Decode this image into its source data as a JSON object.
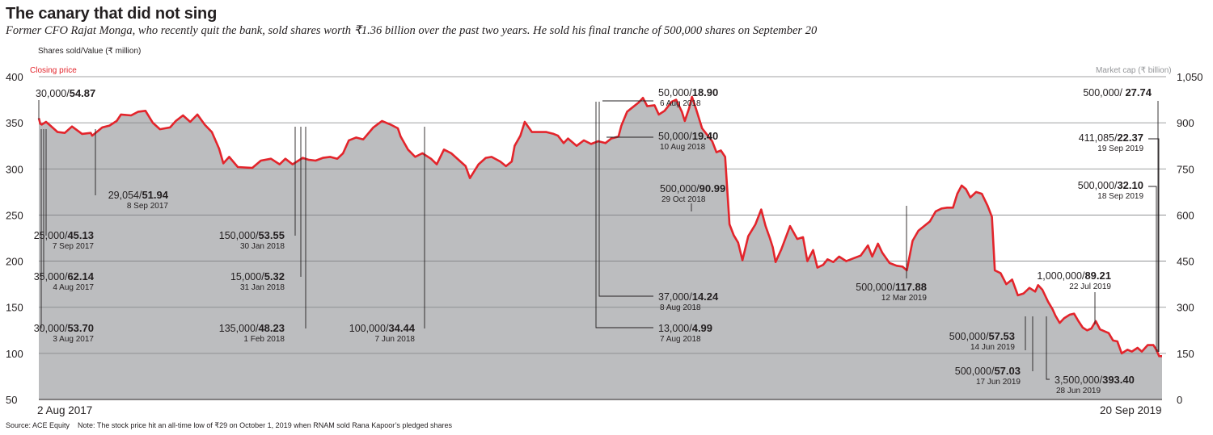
{
  "title": "The canary that did not sing",
  "subtitle": "Former CFO Rajat Monga, who recently quit the bank, sold shares worth ₹1.36 billion over the past two years. He sold his final tranche of 500,000 shares on September 20",
  "source": "Source: ACE Equity",
  "note": "Note: The stock price hit an all-time low of ₹29 on October 1, 2019 when RNAM sold Rana Kapoor’s pledged shares",
  "chart_data": {
    "type": "area",
    "left_axis_caption": "Shares sold/Value (₹ million)",
    "left_series_label": "Closing price",
    "right_axis_caption": "Market cap (₹ billion)",
    "x_start_label": "2 Aug 2017",
    "x_end_label": "20 Sep 2019",
    "y_left": {
      "range": [
        50,
        400
      ],
      "ticks": [
        "400",
        "350",
        "300",
        "250",
        "200",
        "150",
        "100",
        "50"
      ]
    },
    "y_right": {
      "range": [
        0,
        1050
      ],
      "ticks": [
        "1,050",
        "900",
        "750",
        "600",
        "450",
        "300",
        "150",
        "0"
      ]
    },
    "colors": {
      "price_line": "#e3242b",
      "market_cap_area": "#bcbdbf",
      "gridline": "#808285"
    },
    "series": [
      {
        "name": "Closing price",
        "axis": "left"
      },
      {
        "name": "Market cap",
        "axis": "right"
      }
    ],
    "closing_price": [
      [
        "2017-08-02",
        355
      ],
      [
        "2017-08-03",
        349
      ],
      [
        "2017-08-04",
        348
      ],
      [
        "2017-08-07",
        351
      ],
      [
        "2017-08-10",
        347
      ],
      [
        "2017-08-15",
        340
      ],
      [
        "2017-08-20",
        339
      ],
      [
        "2017-08-25",
        346
      ],
      [
        "2017-09-01",
        338
      ],
      [
        "2017-09-07",
        339
      ],
      [
        "2017-09-08",
        336
      ],
      [
        "2017-09-15",
        345
      ],
      [
        "2017-09-20",
        347
      ],
      [
        "2017-09-25",
        352
      ],
      [
        "2017-09-28",
        359
      ],
      [
        "2017-10-05",
        358
      ],
      [
        "2017-10-10",
        362
      ],
      [
        "2017-10-15",
        363
      ],
      [
        "2017-10-20",
        350
      ],
      [
        "2017-10-25",
        343
      ],
      [
        "2017-11-01",
        345
      ],
      [
        "2017-11-05",
        352
      ],
      [
        "2017-11-10",
        358
      ],
      [
        "2017-11-15",
        351
      ],
      [
        "2017-11-20",
        359
      ],
      [
        "2017-11-25",
        348
      ],
      [
        "2017-11-30",
        340
      ],
      [
        "2017-12-05",
        322
      ],
      [
        "2017-12-08",
        306
      ],
      [
        "2017-12-12",
        313
      ],
      [
        "2017-12-18",
        302
      ],
      [
        "2017-12-28",
        301
      ],
      [
        "2018-01-03",
        309
      ],
      [
        "2018-01-10",
        311
      ],
      [
        "2018-01-16",
        305
      ],
      [
        "2018-01-20",
        311
      ],
      [
        "2018-01-25",
        305
      ],
      [
        "2018-02-01",
        312
      ],
      [
        "2018-02-05",
        310
      ],
      [
        "2018-02-10",
        309
      ],
      [
        "2018-02-15",
        312
      ],
      [
        "2018-02-20",
        313
      ],
      [
        "2018-02-25",
        311
      ],
      [
        "2018-03-01",
        317
      ],
      [
        "2018-03-05",
        331
      ],
      [
        "2018-03-10",
        334
      ],
      [
        "2018-03-15",
        332
      ],
      [
        "2018-03-22",
        345
      ],
      [
        "2018-03-28",
        352
      ],
      [
        "2018-04-03",
        348
      ],
      [
        "2018-04-08",
        344
      ],
      [
        "2018-04-10",
        335
      ],
      [
        "2018-04-15",
        321
      ],
      [
        "2018-04-20",
        313
      ],
      [
        "2018-04-25",
        317
      ],
      [
        "2018-05-01",
        311
      ],
      [
        "2018-05-05",
        305
      ],
      [
        "2018-05-10",
        321
      ],
      [
        "2018-05-15",
        317
      ],
      [
        "2018-05-20",
        310
      ],
      [
        "2018-05-25",
        303
      ],
      [
        "2018-05-28",
        290
      ],
      [
        "2018-06-03",
        305
      ],
      [
        "2018-06-08",
        312
      ],
      [
        "2018-06-12",
        313
      ],
      [
        "2018-06-18",
        308
      ],
      [
        "2018-06-22",
        303
      ],
      [
        "2018-06-26",
        308
      ],
      [
        "2018-06-28",
        325
      ],
      [
        "2018-07-02",
        336
      ],
      [
        "2018-07-05",
        351
      ],
      [
        "2018-07-10",
        340
      ],
      [
        "2018-07-15",
        340
      ],
      [
        "2018-07-20",
        340
      ],
      [
        "2018-07-25",
        338
      ],
      [
        "2018-07-28",
        336
      ],
      [
        "2018-08-01",
        328
      ],
      [
        "2018-08-04",
        333
      ],
      [
        "2018-08-10",
        325
      ],
      [
        "2018-08-15",
        331
      ],
      [
        "2018-08-20",
        327
      ],
      [
        "2018-08-25",
        330
      ],
      [
        "2018-08-30",
        328
      ],
      [
        "2018-09-03",
        333
      ],
      [
        "2018-09-08",
        335
      ],
      [
        "2018-09-10",
        347
      ],
      [
        "2018-09-14",
        362
      ],
      [
        "2018-09-18",
        367
      ],
      [
        "2018-09-22",
        372
      ],
      [
        "2018-09-25",
        377
      ],
      [
        "2018-09-28",
        368
      ],
      [
        "2018-10-03",
        369
      ],
      [
        "2018-10-06",
        359
      ],
      [
        "2018-10-10",
        363
      ],
      [
        "2018-10-15",
        373
      ],
      [
        "2018-10-18",
        375
      ],
      [
        "2018-10-22",
        362
      ],
      [
        "2018-10-24",
        352
      ],
      [
        "2018-10-27",
        366
      ],
      [
        "2018-10-29",
        378
      ],
      [
        "2018-11-01",
        364
      ],
      [
        "2018-11-05",
        344
      ],
      [
        "2018-11-08",
        338
      ],
      [
        "2018-11-12",
        330
      ],
      [
        "2018-11-15",
        318
      ],
      [
        "2018-11-18",
        320
      ],
      [
        "2018-11-21",
        313
      ],
      [
        "2018-11-24",
        240
      ],
      [
        "2018-11-27",
        228
      ],
      [
        "2018-11-30",
        220
      ],
      [
        "2018-12-03",
        201
      ],
      [
        "2018-12-07",
        227
      ],
      [
        "2018-12-12",
        240
      ],
      [
        "2018-12-16",
        256
      ],
      [
        "2018-12-19",
        238
      ],
      [
        "2018-12-22",
        225
      ],
      [
        "2018-12-24",
        215
      ],
      [
        "2018-12-26",
        199
      ],
      [
        "2018-12-30",
        213
      ],
      [
        "2019-01-05",
        238
      ],
      [
        "2019-01-10",
        224
      ],
      [
        "2019-01-14",
        226
      ],
      [
        "2019-01-17",
        200
      ],
      [
        "2019-01-21",
        212
      ],
      [
        "2019-01-24",
        193
      ],
      [
        "2019-01-28",
        196
      ],
      [
        "2019-01-31",
        202
      ],
      [
        "2019-02-04",
        199
      ],
      [
        "2019-02-08",
        205
      ],
      [
        "2019-02-13",
        200
      ],
      [
        "2019-02-18",
        203
      ],
      [
        "2019-02-23",
        206
      ],
      [
        "2019-02-28",
        217
      ],
      [
        "2019-03-03",
        205
      ],
      [
        "2019-03-07",
        219
      ],
      [
        "2019-03-10",
        209
      ],
      [
        "2019-03-15",
        198
      ],
      [
        "2019-03-20",
        195
      ],
      [
        "2019-03-24",
        194
      ],
      [
        "2019-03-27",
        190
      ],
      [
        "2019-03-31",
        222
      ],
      [
        "2019-04-04",
        233
      ],
      [
        "2019-04-08",
        238
      ],
      [
        "2019-04-12",
        243
      ],
      [
        "2019-04-16",
        254
      ],
      [
        "2019-04-20",
        257
      ],
      [
        "2019-04-24",
        258
      ],
      [
        "2019-04-28",
        258
      ],
      [
        "2019-05-01",
        273
      ],
      [
        "2019-05-04",
        282
      ],
      [
        "2019-05-07",
        278
      ],
      [
        "2019-05-10",
        269
      ],
      [
        "2019-05-14",
        275
      ],
      [
        "2019-05-18",
        273
      ],
      [
        "2019-05-22",
        260
      ],
      [
        "2019-05-25",
        248
      ],
      [
        "2019-05-27",
        190
      ],
      [
        "2019-05-31",
        187
      ],
      [
        "2019-06-04",
        175
      ],
      [
        "2019-06-08",
        180
      ],
      [
        "2019-06-12",
        163
      ],
      [
        "2019-06-16",
        165
      ],
      [
        "2019-06-20",
        171
      ],
      [
        "2019-06-24",
        167
      ],
      [
        "2019-06-26",
        174
      ],
      [
        "2019-06-29",
        169
      ],
      [
        "2019-07-03",
        156
      ],
      [
        "2019-07-06",
        148
      ],
      [
        "2019-07-08",
        141
      ],
      [
        "2019-07-11",
        133
      ],
      [
        "2019-07-14",
        138
      ],
      [
        "2019-07-18",
        142
      ],
      [
        "2019-07-21",
        143
      ],
      [
        "2019-07-24",
        135
      ],
      [
        "2019-07-27",
        128
      ],
      [
        "2019-07-30",
        125
      ],
      [
        "2019-08-02",
        127
      ],
      [
        "2019-08-05",
        135
      ],
      [
        "2019-08-08",
        126
      ],
      [
        "2019-08-11",
        124
      ],
      [
        "2019-08-14",
        122
      ],
      [
        "2019-08-17",
        114
      ],
      [
        "2019-08-20",
        113
      ],
      [
        "2019-08-23",
        100
      ],
      [
        "2019-08-27",
        104
      ],
      [
        "2019-08-30",
        102
      ],
      [
        "2019-09-03",
        106
      ],
      [
        "2019-09-06",
        102
      ],
      [
        "2019-09-10",
        109
      ],
      [
        "2019-09-14",
        109
      ],
      [
        "2019-09-16",
        104
      ],
      [
        "2019-09-18",
        97
      ],
      [
        "2019-09-20",
        97
      ]
    ],
    "annotations": [
      {
        "text": "30,000/",
        "value": "54.87",
        "date": ""
      },
      {
        "text": "29,054/",
        "value": "51.94",
        "date": "8 Sep 2017"
      },
      {
        "text": "25,000/",
        "value": "45.13",
        "date": "7 Sep 2017"
      },
      {
        "text": "35,000/",
        "value": "62.14",
        "date": "4 Aug 2017"
      },
      {
        "text": "30,000/",
        "value": "53.70",
        "date": "3 Aug 2017"
      },
      {
        "text": "150,000/",
        "value": "53.55",
        "date": "30 Jan 2018"
      },
      {
        "text": "15,000/",
        "value": "5.32",
        "date": "31 Jan 2018"
      },
      {
        "text": "135,000/",
        "value": "48.23",
        "date": "1 Feb 2018"
      },
      {
        "text": "100,000/",
        "value": "34.44",
        "date": "7 Jun 2018"
      },
      {
        "text": "50,000/",
        "value": "18.90",
        "date": "6 Aug 2018"
      },
      {
        "text": "50,000/",
        "value": "19.40",
        "date": "10 Aug 2018"
      },
      {
        "text": "500,000/",
        "value": "90.99",
        "date": "29 Oct 2018"
      },
      {
        "text": "37,000/",
        "value": "14.24",
        "date": "8 Aug 2018"
      },
      {
        "text": "13,000/",
        "value": "4.99",
        "date": "7 Aug 2018"
      },
      {
        "text": "500,000/",
        "value": "117.88",
        "date": "12 Mar 2019"
      },
      {
        "text": "500,000/",
        "value": "57.53",
        "date": "14 Jun 2019"
      },
      {
        "text": "500,000/",
        "value": "57.03",
        "date": "17 Jun 2019"
      },
      {
        "text": "3,500,000/",
        "value": "393.40",
        "date": "28 Jun 2019"
      },
      {
        "text": "1,000,000/",
        "value": "89.21",
        "date": "22 Jul 2019"
      },
      {
        "text": "500,000/ ",
        "value": "27.74",
        "date": ""
      },
      {
        "text": "411,085/",
        "value": "22.37",
        "date": "19 Sep 2019"
      },
      {
        "text": "500,000/",
        "value": "32.10",
        "date": "18 Sep 2019"
      }
    ]
  }
}
